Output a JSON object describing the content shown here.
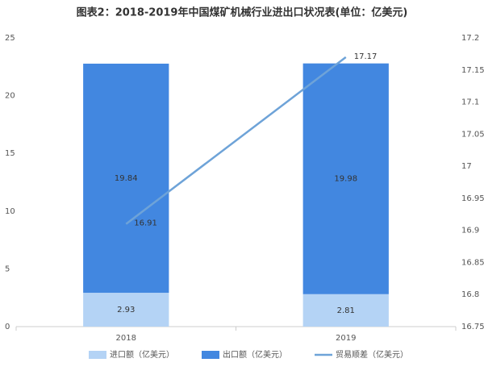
{
  "chart_data": {
    "type": "bar",
    "title": "图表2：2018-2019年中国煤矿机械行业进出口状况表(单位：亿美元)",
    "categories": [
      "2018",
      "2019"
    ],
    "series": [
      {
        "name": "进口额（亿美元）",
        "color": "#b4d3f5",
        "values": [
          2.93,
          2.81
        ]
      },
      {
        "name": "出口额（亿美元）",
        "color": "#4287e0",
        "values": [
          19.84,
          19.98
        ]
      },
      {
        "name": "贸易顺差（亿美元）",
        "color": "#6ea3d8",
        "values": [
          16.91,
          17.17
        ],
        "axis": "y2",
        "type": "line"
      }
    ],
    "stacked": true,
    "ylim": [
      0,
      25
    ],
    "yticks": [
      0,
      5,
      10,
      15,
      20,
      25
    ],
    "y2lim": [
      16.75,
      17.2
    ],
    "y2ticks": [
      16.75,
      16.8,
      16.85,
      16.9,
      16.95,
      17,
      17.05,
      17.1,
      17.15,
      17.2
    ],
    "grid": false,
    "legend": "bottom"
  }
}
